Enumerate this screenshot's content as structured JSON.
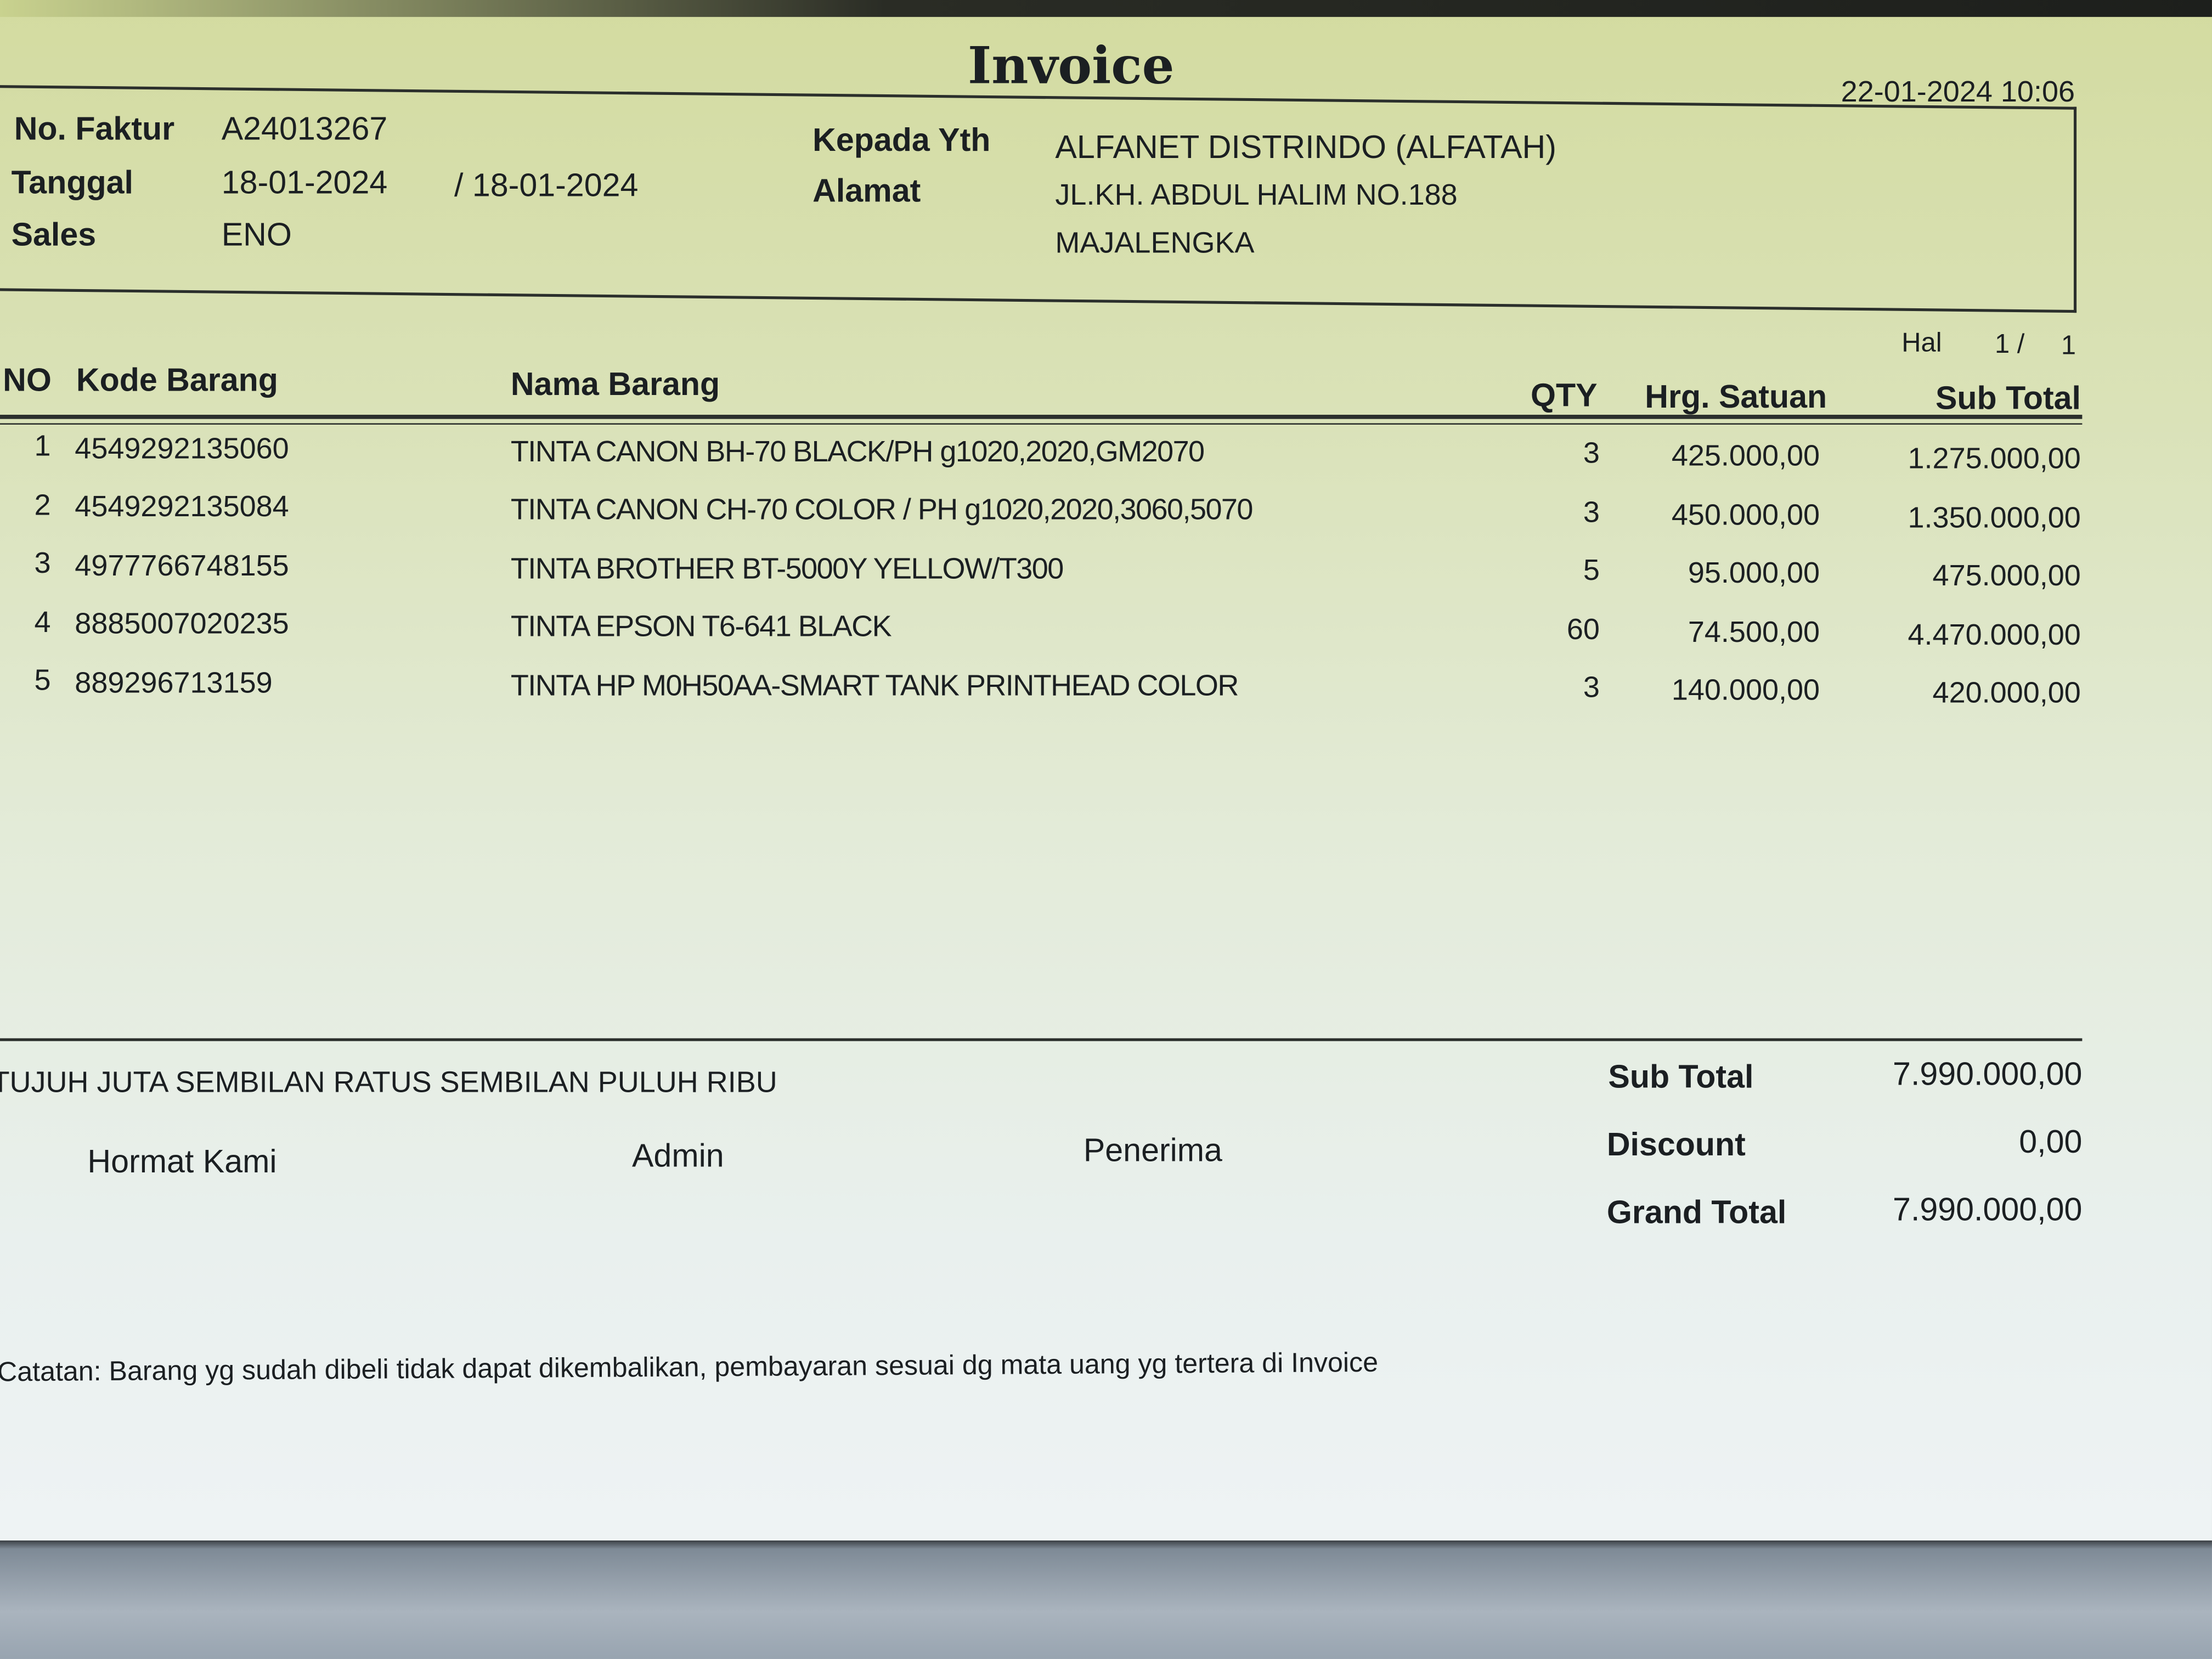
{
  "title": "Invoice",
  "printed_at": "22-01-2024 10:06",
  "header": {
    "no_faktur_label": "No. Faktur",
    "no_faktur": "A24013267",
    "tanggal_label": "Tanggal",
    "tanggal": "18-01-2024",
    "tanggal2": "/ 18-01-2024",
    "sales_label": "Sales",
    "sales": "ENO",
    "kepada_label": "Kepada Yth",
    "kepada": "ALFANET DISTRINDO (ALFATAH)",
    "alamat_label": "Alamat",
    "alamat1": "JL.KH. ABDUL HALIM NO.188",
    "alamat2": "MAJALENGKA"
  },
  "page": {
    "label": "Hal",
    "current": "1 /",
    "total": "1"
  },
  "columns": {
    "no": "NO",
    "kode": "Kode Barang",
    "nama": "Nama Barang",
    "qty": "QTY",
    "harga": "Hrg. Satuan",
    "subtotal": "Sub Total"
  },
  "items": [
    {
      "no": "1",
      "kode": "4549292135060",
      "nama": "TINTA CANON BH-70 BLACK/PH g1020,2020,GM2070",
      "qty": "3",
      "harga": "425.000,00",
      "subtotal": "1.275.000,00"
    },
    {
      "no": "2",
      "kode": "4549292135084",
      "nama": "TINTA CANON CH-70 COLOR / PH g1020,2020,3060,5070",
      "qty": "3",
      "harga": "450.000,00",
      "subtotal": "1.350.000,00"
    },
    {
      "no": "3",
      "kode": "4977766748155",
      "nama": "TINTA BROTHER BT-5000Y YELLOW/T300",
      "qty": "5",
      "harga": "95.000,00",
      "subtotal": "475.000,00"
    },
    {
      "no": "4",
      "kode": "8885007020235",
      "nama": "TINTA EPSON T6-641 BLACK",
      "qty": "60",
      "harga": "74.500,00",
      "subtotal": "4.470.000,00"
    },
    {
      "no": "5",
      "kode": "889296713159",
      "nama": "TINTA HP M0H50AA-SMART TANK PRINTHEAD COLOR",
      "qty": "3",
      "harga": "140.000,00",
      "subtotal": "420.000,00"
    }
  ],
  "terbilang": "TUJUH JUTA SEMBILAN RATUS SEMBILAN PULUH RIBU",
  "signatures": {
    "hormat": "Hormat Kami",
    "admin": "Admin",
    "penerima": "Penerima"
  },
  "totals": {
    "subtotal_label": "Sub Total",
    "subtotal": "7.990.000,00",
    "discount_label": "Discount",
    "discount": "0,00",
    "grand_label": "Grand Total",
    "grand": "7.990.000,00"
  },
  "note": "Catatan: Barang yg sudah dibeli tidak dapat dikembalikan, pembayaran sesuai dg mata uang yg tertera di Invoice"
}
